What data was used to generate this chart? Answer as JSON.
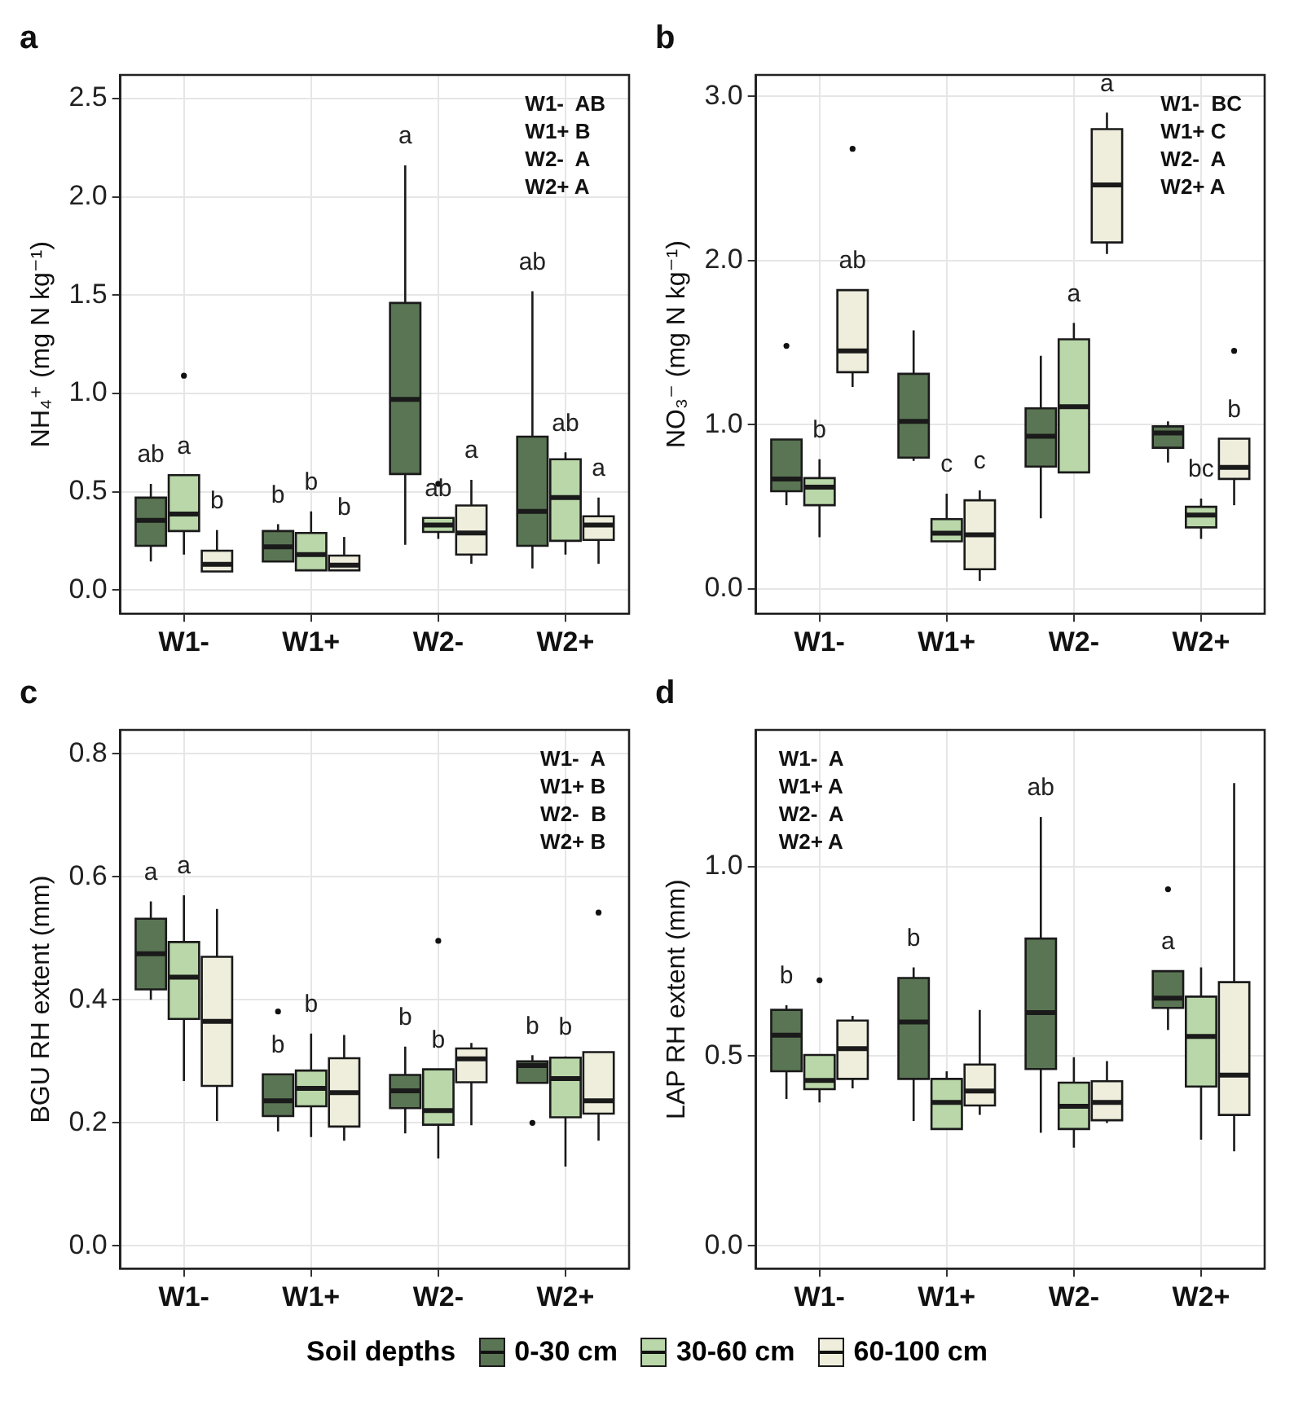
{
  "chart_data": [
    {
      "type": "box",
      "title": "a",
      "ylabel": "NH₄⁺ (mg N kg⁻¹)",
      "categories": [
        "W1-",
        "W1+",
        "W2-",
        "W2+"
      ],
      "ylim": [
        -0.12,
        2.62
      ],
      "yticks": [
        {
          "value": 0,
          "label": "0.0"
        },
        {
          "value": 0.5,
          "label": "0.5"
        },
        {
          "value": 1,
          "label": "1.0"
        },
        {
          "value": 1.5,
          "label": "1.5"
        },
        {
          "value": 2,
          "label": "2.0"
        },
        {
          "value": 2.5,
          "label": "2.5"
        }
      ],
      "grid": true,
      "legend": false,
      "annotations": [
        "W1-  AB",
        "W1+ B",
        "W2-  A",
        "W2+ A"
      ],
      "series": [
        {
          "color": "#5a7553",
          "value_labels": [
            "ab",
            "b",
            "a",
            "ab"
          ],
          "boxes": [
            {
              "low": 0.145,
              "q1": 0.225,
              "median": 0.354,
              "q3": 0.47,
              "high": 0.54
            },
            {
              "low": 0.145,
              "q1": 0.145,
              "median": 0.22,
              "q3": 0.3,
              "high": 0.335
            },
            {
              "low": 0.23,
              "q1": 0.59,
              "median": 0.97,
              "q3": 1.46,
              "high": 2.16
            },
            {
              "low": 0.11,
              "q1": 0.225,
              "median": 0.4,
              "q3": 0.78,
              "high": 1.52
            }
          ]
        },
        {
          "color": "#b9d7a8",
          "value_labels": [
            "a",
            "b",
            "ab",
            "ab"
          ],
          "boxes": [
            {
              "low": 0.18,
              "q1": 0.3,
              "median": 0.386,
              "q3": 0.584,
              "high": 0.584,
              "outliers": [
                1.09
              ]
            },
            {
              "low": 0.1,
              "q1": 0.1,
              "median": 0.18,
              "q3": 0.29,
              "high": 0.4
            },
            {
              "low": 0.26,
              "q1": 0.295,
              "median": 0.33,
              "q3": 0.367,
              "high": 0.367,
              "outliers": [
                0.54
              ]
            },
            {
              "low": 0.18,
              "q1": 0.25,
              "median": 0.47,
              "q3": 0.665,
              "high": 0.7
            }
          ]
        },
        {
          "color": "#efeedd",
          "value_labels": [
            "b",
            "b",
            "a",
            "a"
          ],
          "boxes": [
            {
              "low": 0.094,
              "q1": 0.094,
              "median": 0.13,
              "q3": 0.2,
              "high": 0.305
            },
            {
              "low": 0.1,
              "q1": 0.1,
              "median": 0.126,
              "q3": 0.175,
              "high": 0.27
            },
            {
              "low": 0.134,
              "q1": 0.18,
              "median": 0.29,
              "q3": 0.43,
              "high": 0.56
            },
            {
              "low": 0.134,
              "q1": 0.255,
              "median": 0.33,
              "q3": 0.375,
              "high": 0.47
            }
          ]
        }
      ]
    },
    {
      "type": "box",
      "title": "b",
      "ylabel": "NO₃⁻ (mg N kg⁻¹)",
      "categories": [
        "W1-",
        "W1+",
        "W2-",
        "W2+"
      ],
      "ylim": [
        -0.15,
        3.13
      ],
      "yticks": [
        {
          "value": 0,
          "label": "0.0"
        },
        {
          "value": 1,
          "label": "1.0"
        },
        {
          "value": 2,
          "label": "2.0"
        },
        {
          "value": 3,
          "label": "3.0"
        }
      ],
      "grid": true,
      "legend": false,
      "annotations": [
        "W1-  BC",
        "W1+ C",
        "W2-  A",
        "W2+ A"
      ],
      "series": [
        {
          "color": "#5a7553",
          "boxes": [
            {
              "low": 0.51,
              "q1": 0.595,
              "median": 0.67,
              "q3": 0.91,
              "high": 0.91,
              "outliers": [
                1.48
              ]
            },
            {
              "low": 0.78,
              "q1": 0.8,
              "median": 1.02,
              "q3": 1.31,
              "high": 1.575
            },
            {
              "low": 0.43,
              "q1": 0.745,
              "median": 0.93,
              "q3": 1.1,
              "high": 1.42
            },
            {
              "low": 0.77,
              "q1": 0.86,
              "median": 0.95,
              "q3": 0.99,
              "high": 1.02
            }
          ]
        },
        {
          "color": "#b9d7a8",
          "value_labels": [
            "b",
            "c",
            "a",
            "bc"
          ],
          "boxes": [
            {
              "low": 0.315,
              "q1": 0.51,
              "median": 0.62,
              "q3": 0.675,
              "high": 0.79
            },
            {
              "low": 0.29,
              "q1": 0.29,
              "median": 0.34,
              "q3": 0.425,
              "high": 0.58
            },
            {
              "low": 0.71,
              "q1": 0.71,
              "median": 1.11,
              "q3": 1.52,
              "high": 1.62
            },
            {
              "low": 0.305,
              "q1": 0.375,
              "median": 0.45,
              "q3": 0.5,
              "high": 0.55
            }
          ]
        },
        {
          "color": "#efeedd",
          "value_labels": [
            "ab",
            "c",
            "a",
            "b"
          ],
          "boxes": [
            {
              "low": 1.23,
              "q1": 1.32,
              "median": 1.45,
              "q3": 1.82,
              "high": 1.82,
              "outliers": [
                2.68
              ]
            },
            {
              "low": 0.05,
              "q1": 0.12,
              "median": 0.33,
              "q3": 0.54,
              "high": 0.6
            },
            {
              "low": 2.04,
              "q1": 2.11,
              "median": 2.46,
              "q3": 2.8,
              "high": 2.9
            },
            {
              "low": 0.51,
              "q1": 0.67,
              "median": 0.74,
              "q3": 0.915,
              "high": 0.915,
              "outliers": [
                1.45
              ]
            }
          ]
        }
      ]
    },
    {
      "type": "box",
      "title": "c",
      "ylabel": "BGU RH extent (mm)",
      "categories": [
        "W1-",
        "W1+",
        "W2-",
        "W2+"
      ],
      "ylim": [
        -0.037,
        0.839
      ],
      "yticks": [
        {
          "value": 0,
          "label": "0.0"
        },
        {
          "value": 0.2,
          "label": "0.2"
        },
        {
          "value": 0.4,
          "label": "0.4"
        },
        {
          "value": 0.6,
          "label": "0.6"
        },
        {
          "value": 0.8,
          "label": "0.8"
        }
      ],
      "grid": true,
      "legend": false,
      "annotations": [
        "W1-  A",
        "W1+ B",
        "W2-  B",
        "W2+ B"
      ],
      "series": [
        {
          "color": "#5a7553",
          "value_labels": [
            "a",
            "b",
            "b",
            "b"
          ],
          "boxes": [
            {
              "low": 0.4,
              "q1": 0.417,
              "median": 0.475,
              "q3": 0.532,
              "high": 0.56
            },
            {
              "low": 0.186,
              "q1": 0.211,
              "median": 0.236,
              "q3": 0.279,
              "high": 0.279,
              "outliers": [
                0.381
              ]
            },
            {
              "low": 0.183,
              "q1": 0.224,
              "median": 0.252,
              "q3": 0.278,
              "high": 0.324
            },
            {
              "low": 0.265,
              "q1": 0.265,
              "median": 0.293,
              "q3": 0.3,
              "high": 0.31,
              "outliers": [
                0.2
              ]
            }
          ]
        },
        {
          "color": "#b9d7a8",
          "value_labels": [
            "a",
            "b",
            "b",
            "b"
          ],
          "boxes": [
            {
              "low": 0.268,
              "q1": 0.369,
              "median": 0.437,
              "q3": 0.494,
              "high": 0.57
            },
            {
              "low": 0.177,
              "q1": 0.227,
              "median": 0.256,
              "q3": 0.285,
              "high": 0.345
            },
            {
              "low": 0.142,
              "q1": 0.197,
              "median": 0.22,
              "q3": 0.287,
              "high": 0.287,
              "outliers": [
                0.496
              ]
            },
            {
              "low": 0.129,
              "q1": 0.209,
              "median": 0.272,
              "q3": 0.306,
              "high": 0.308
            }
          ]
        },
        {
          "color": "#efeedd",
          "boxes": [
            {
              "low": 0.203,
              "q1": 0.26,
              "median": 0.365,
              "q3": 0.47,
              "high": 0.548
            },
            {
              "low": 0.171,
              "q1": 0.194,
              "median": 0.249,
              "q3": 0.305,
              "high": 0.343
            },
            {
              "low": 0.196,
              "q1": 0.266,
              "median": 0.304,
              "q3": 0.321,
              "high": 0.33
            },
            {
              "low": 0.171,
              "q1": 0.215,
              "median": 0.236,
              "q3": 0.315,
              "high": 0.315,
              "outliers": [
                0.542
              ]
            }
          ]
        }
      ]
    },
    {
      "type": "box",
      "title": "d",
      "ylabel": "LAP RH extent (mm)",
      "categories": [
        "W1-",
        "W1+",
        "W2-",
        "W2+"
      ],
      "ylim": [
        -0.06,
        1.36
      ],
      "yticks": [
        {
          "value": 0,
          "label": "0.0"
        },
        {
          "value": 0.5,
          "label": "0.5"
        },
        {
          "value": 1,
          "label": "1.0"
        }
      ],
      "grid": true,
      "legend": "bottom",
      "legend_title": "Soil depths",
      "annotations": [
        "W1-  A",
        "W1+ A",
        "W2-  A",
        "W2+ A"
      ],
      "series": [
        {
          "name": "0-30 cm",
          "color": "#5a7553",
          "value_labels": [
            "b",
            "b",
            "ab",
            "a"
          ],
          "boxes": [
            {
              "low": 0.387,
              "q1": 0.46,
              "median": 0.555,
              "q3": 0.622,
              "high": 0.634
            },
            {
              "low": 0.329,
              "q1": 0.44,
              "median": 0.59,
              "q3": 0.706,
              "high": 0.734
            },
            {
              "low": 0.298,
              "q1": 0.466,
              "median": 0.615,
              "q3": 0.81,
              "high": 1.13
            },
            {
              "low": 0.569,
              "q1": 0.627,
              "median": 0.653,
              "q3": 0.724,
              "high": 0.724,
              "outliers": [
                0.94
              ]
            }
          ]
        },
        {
          "name": "30-60 cm",
          "color": "#b9d7a8",
          "boxes": [
            {
              "low": 0.378,
              "q1": 0.413,
              "median": 0.436,
              "q3": 0.503,
              "high": 0.503,
              "outliers": [
                0.7
              ]
            },
            {
              "low": 0.308,
              "q1": 0.308,
              "median": 0.378,
              "q3": 0.44,
              "high": 0.46
            },
            {
              "low": 0.259,
              "q1": 0.308,
              "median": 0.368,
              "q3": 0.43,
              "high": 0.497
            },
            {
              "low": 0.28,
              "q1": 0.42,
              "median": 0.552,
              "q3": 0.657,
              "high": 0.734
            }
          ]
        },
        {
          "name": "60-100 cm",
          "color": "#efeedd",
          "boxes": [
            {
              "low": 0.415,
              "q1": 0.44,
              "median": 0.52,
              "q3": 0.594,
              "high": 0.606
            },
            {
              "low": 0.345,
              "q1": 0.37,
              "median": 0.408,
              "q3": 0.478,
              "high": 0.622
            },
            {
              "low": 0.324,
              "q1": 0.331,
              "median": 0.378,
              "q3": 0.434,
              "high": 0.487
            },
            {
              "low": 0.249,
              "q1": 0.345,
              "median": 0.45,
              "q3": 0.695,
              "high": 1.22
            }
          ]
        }
      ]
    }
  ]
}
